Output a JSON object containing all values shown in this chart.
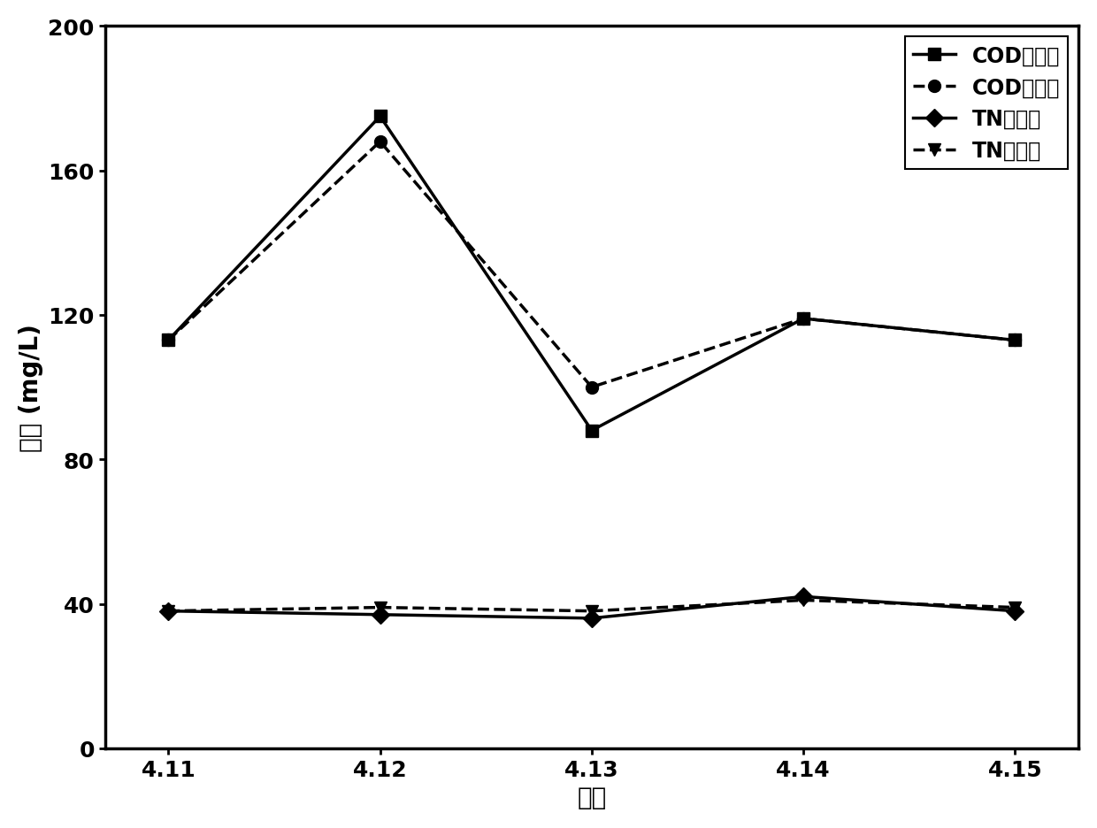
{
  "x_labels": [
    "4.11",
    "4.12",
    "4.13",
    "4.14",
    "4.15"
  ],
  "x_values": [
    0,
    1,
    2,
    3,
    4
  ],
  "COD_measured": [
    113,
    175,
    88,
    119,
    113
  ],
  "COD_simulated": [
    113,
    168,
    100,
    119,
    113
  ],
  "TN_measured": [
    38,
    37,
    36,
    42,
    38
  ],
  "TN_simulated": [
    38,
    39,
    38,
    41,
    39
  ],
  "ylabel": "出水 (mg/L)",
  "xlabel": "日期",
  "legend_labels": [
    "COD实测值",
    "COD模拟值",
    "TN实测值",
    "TN模拟值"
  ],
  "ylim": [
    0,
    200
  ],
  "yticks": [
    0,
    40,
    80,
    120,
    160,
    200
  ],
  "line_color": "#000000",
  "background_color": "#ffffff",
  "title_fontsize": 18,
  "label_fontsize": 20,
  "tick_fontsize": 18,
  "legend_fontsize": 17,
  "linewidth": 2.5,
  "markersize": 10
}
